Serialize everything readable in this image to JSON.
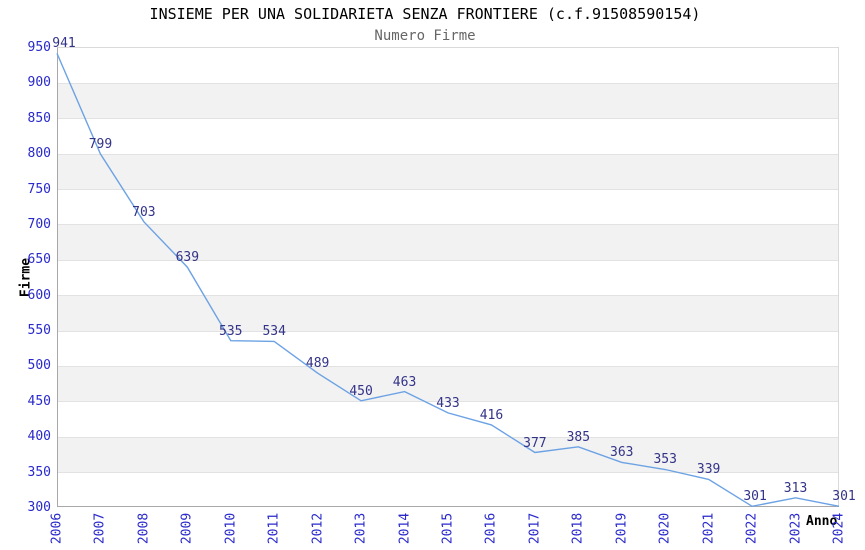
{
  "chart_data": {
    "type": "line",
    "title": "INSIEME PER UNA SOLIDARIETA SENZA FRONTIERE (c.f.91508590154)",
    "subtitle": "Numero Firme",
    "xlabel": "Anno",
    "ylabel": "Firme",
    "categories": [
      "2006",
      "2007",
      "2008",
      "2009",
      "2010",
      "2011",
      "2012",
      "2013",
      "2014",
      "2015",
      "2016",
      "2017",
      "2018",
      "2019",
      "2020",
      "2021",
      "2022",
      "2023",
      "2024"
    ],
    "values": [
      941,
      799,
      703,
      639,
      535,
      534,
      489,
      450,
      463,
      433,
      416,
      377,
      385,
      363,
      353,
      339,
      301,
      313,
      301
    ],
    "ylim": [
      300,
      950
    ],
    "ytick_step": 50,
    "grid": true,
    "legend": "none",
    "colors": {
      "line": "#6ca2e4",
      "tick_label": "#2929cc",
      "data_label": "#333388",
      "band": "#f2f2f2",
      "gridline": "#e2e2e2",
      "title": "#000000",
      "subtitle": "#666666",
      "axis_label": "#000000"
    }
  }
}
